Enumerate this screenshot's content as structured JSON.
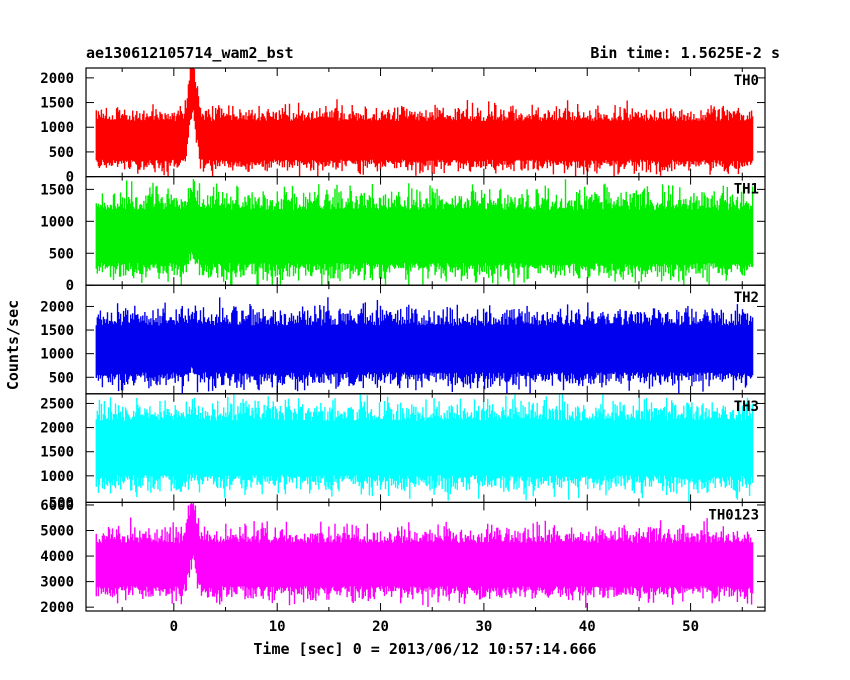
{
  "chart_data": {
    "type": "line",
    "title": "ae130612105714_wam2_bst",
    "subtitle": "Bin time: 1.5625E-2 s",
    "xlabel": "Time [sec] 0 = 2013/06/12 10:57:14.666",
    "ylabel": "Counts/sec",
    "xlim": [
      -8.5,
      57.2
    ],
    "x_ticks": [
      0,
      10,
      20,
      30,
      40,
      50
    ],
    "x_tick_labels": [
      "0",
      "10",
      "20",
      "30",
      "40",
      "50"
    ],
    "data_x_range": [
      -7.5,
      56
    ],
    "grid": false,
    "panels": [
      {
        "name": "TH0",
        "color": "#ff0000",
        "ylim": [
          0,
          2200
        ],
        "y_ticks": [
          0,
          500,
          1000,
          1500,
          2000
        ],
        "y_tick_labels": [
          "0",
          "500",
          "1000",
          "1500",
          "2000"
        ],
        "mean": 750,
        "spread": 300,
        "burst": {
          "center": 1.8,
          "width": 0.5,
          "peak": 1050
        }
      },
      {
        "name": "TH1",
        "color": "#00ee00",
        "ylim": [
          0,
          1700
        ],
        "y_ticks": [
          0,
          500,
          1000,
          1500
        ],
        "y_tick_labels": [
          "0",
          "500",
          "1000",
          "1500"
        ],
        "mean": 780,
        "spread": 320,
        "burst": {
          "center": 1.8,
          "width": 0.5,
          "peak": 250
        }
      },
      {
        "name": "TH2",
        "color": "#0000ee",
        "ylim": [
          150,
          2450
        ],
        "y_ticks": [
          500,
          1000,
          1500,
          2000
        ],
        "y_tick_labels": [
          "500",
          "1000",
          "1500",
          "2000"
        ],
        "mean": 1120,
        "spread": 380,
        "burst": {
          "center": 1.8,
          "width": 0.5,
          "peak": 120
        }
      },
      {
        "name": "TH3",
        "color": "#00ffff",
        "ylim": [
          450,
          2700
        ],
        "y_ticks": [
          1000,
          1500,
          2000,
          2500
        ],
        "y_tick_labels": [
          "1000",
          "1500",
          "2000",
          "2500"
        ],
        "extra_tick_label": "500",
        "mean": 1600,
        "spread": 430,
        "burst": {
          "center": 1.8,
          "width": 0.5,
          "peak": 50
        }
      },
      {
        "name": "TH0123",
        "color": "#ff00ff",
        "ylim": [
          1850,
          6100
        ],
        "y_ticks": [
          2000,
          3000,
          4000,
          5000,
          6000
        ],
        "y_tick_labels": [
          "2000",
          "3000",
          "4000",
          "5000",
          "6000"
        ],
        "mean": 3700,
        "spread": 650,
        "burst": {
          "center": 1.8,
          "width": 0.5,
          "peak": 1300
        }
      }
    ]
  }
}
